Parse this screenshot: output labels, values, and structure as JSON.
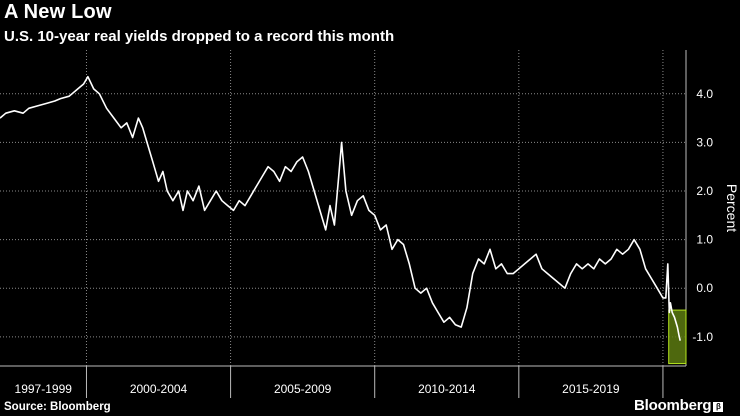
{
  "header": {
    "title": "A New Low",
    "subtitle": "U.S. 10-year real yields dropped to a record this month"
  },
  "footer": {
    "source": "Source: Bloomberg",
    "brand": "Bloomberg"
  },
  "colors": {
    "background": "#000000",
    "line": "#ffffff",
    "grid": "#8a8a8a",
    "highlight_fill": "#5c7a10",
    "highlight_stroke": "#b5e61d"
  },
  "chart_data": {
    "type": "line",
    "title": "A New Low",
    "subtitle": "U.S. 10-year real yields dropped to a record this month",
    "xlabel": "",
    "ylabel": "Percent",
    "y_axis_side": "right",
    "ylim": [
      -1.6,
      4.9
    ],
    "yticks": [
      4.0,
      3.0,
      2.0,
      1.0,
      0.0,
      -1.0
    ],
    "ytick_labels": [
      "4.0",
      "3.0",
      "2.0",
      "1.0",
      "0.0",
      "-1.0"
    ],
    "xlim": [
      1997.0,
      2020.8
    ],
    "x_periods": [
      {
        "label": "1997-1999",
        "start": 1997.0,
        "end": 2000.0
      },
      {
        "label": "2000-2004",
        "start": 2000.0,
        "end": 2005.0
      },
      {
        "label": "2005-2009",
        "start": 2005.0,
        "end": 2010.0
      },
      {
        "label": "2010-2014",
        "start": 2010.0,
        "end": 2015.0
      },
      {
        "label": "2015-2019",
        "start": 2015.0,
        "end": 2020.0
      }
    ],
    "grid": true,
    "series": [
      {
        "x": [
          1997.0,
          1997.2,
          1997.5,
          1997.8,
          1998.0,
          1998.3,
          1998.6,
          1998.9,
          1999.1,
          1999.4,
          1999.7,
          1999.9,
          2000.05,
          2000.25,
          2000.45,
          2000.7,
          2000.95,
          2001.2,
          2001.4,
          2001.6,
          2001.8,
          2001.95,
          2002.1,
          2002.3,
          2002.5,
          2002.65,
          2002.8,
          2003.0,
          2003.2,
          2003.35,
          2003.5,
          2003.7,
          2003.9,
          2004.1,
          2004.3,
          2004.5,
          2004.7,
          2004.9,
          2005.1,
          2005.3,
          2005.5,
          2005.7,
          2005.9,
          2006.1,
          2006.3,
          2006.5,
          2006.7,
          2006.9,
          2007.1,
          2007.3,
          2007.5,
          2007.7,
          2007.9,
          2008.1,
          2008.3,
          2008.45,
          2008.6,
          2008.75,
          2008.85,
          2009.0,
          2009.2,
          2009.4,
          2009.6,
          2009.8,
          2010.0,
          2010.2,
          2010.4,
          2010.6,
          2010.8,
          2011.0,
          2011.2,
          2011.4,
          2011.6,
          2011.8,
          2012.0,
          2012.2,
          2012.4,
          2012.6,
          2012.8,
          2013.0,
          2013.2,
          2013.4,
          2013.6,
          2013.8,
          2014.0,
          2014.2,
          2014.4,
          2014.6,
          2014.8,
          2015.0,
          2015.2,
          2015.4,
          2015.6,
          2015.8,
          2016.0,
          2016.2,
          2016.4,
          2016.6,
          2016.8,
          2017.0,
          2017.2,
          2017.4,
          2017.6,
          2017.8,
          2018.0,
          2018.2,
          2018.4,
          2018.6,
          2018.8,
          2019.0,
          2019.2,
          2019.4,
          2019.6,
          2019.8,
          2020.0,
          2020.1,
          2020.17,
          2020.22,
          2020.26,
          2020.32,
          2020.4,
          2020.5,
          2020.55,
          2020.6
        ],
        "values": [
          3.5,
          3.6,
          3.65,
          3.6,
          3.7,
          3.75,
          3.8,
          3.85,
          3.9,
          3.95,
          4.1,
          4.2,
          4.35,
          4.1,
          4.0,
          3.7,
          3.5,
          3.3,
          3.4,
          3.1,
          3.5,
          3.3,
          3.0,
          2.6,
          2.2,
          2.4,
          2.0,
          1.8,
          2.0,
          1.6,
          2.0,
          1.8,
          2.1,
          1.6,
          1.8,
          2.0,
          1.8,
          1.7,
          1.6,
          1.8,
          1.7,
          1.9,
          2.1,
          2.3,
          2.5,
          2.4,
          2.2,
          2.5,
          2.4,
          2.6,
          2.7,
          2.4,
          2.0,
          1.6,
          1.2,
          1.7,
          1.3,
          2.3,
          3.0,
          2.0,
          1.5,
          1.8,
          1.9,
          1.6,
          1.5,
          1.2,
          1.3,
          0.8,
          1.0,
          0.9,
          0.5,
          0.0,
          -0.1,
          0.0,
          -0.3,
          -0.5,
          -0.7,
          -0.6,
          -0.75,
          -0.8,
          -0.4,
          0.3,
          0.6,
          0.5,
          0.8,
          0.4,
          0.5,
          0.3,
          0.3,
          0.4,
          0.5,
          0.6,
          0.7,
          0.4,
          0.3,
          0.2,
          0.1,
          0.0,
          0.3,
          0.5,
          0.4,
          0.5,
          0.4,
          0.6,
          0.5,
          0.6,
          0.8,
          0.7,
          0.8,
          1.0,
          0.8,
          0.4,
          0.2,
          0.0,
          -0.2,
          -0.2,
          0.5,
          -0.5,
          -0.3,
          -0.5,
          -0.6,
          -0.8,
          -0.95,
          -1.08
        ]
      }
    ],
    "highlight": {
      "x_start": 2020.2,
      "x_end": 2020.8,
      "y_low": -1.55,
      "y_high": -0.45
    }
  }
}
